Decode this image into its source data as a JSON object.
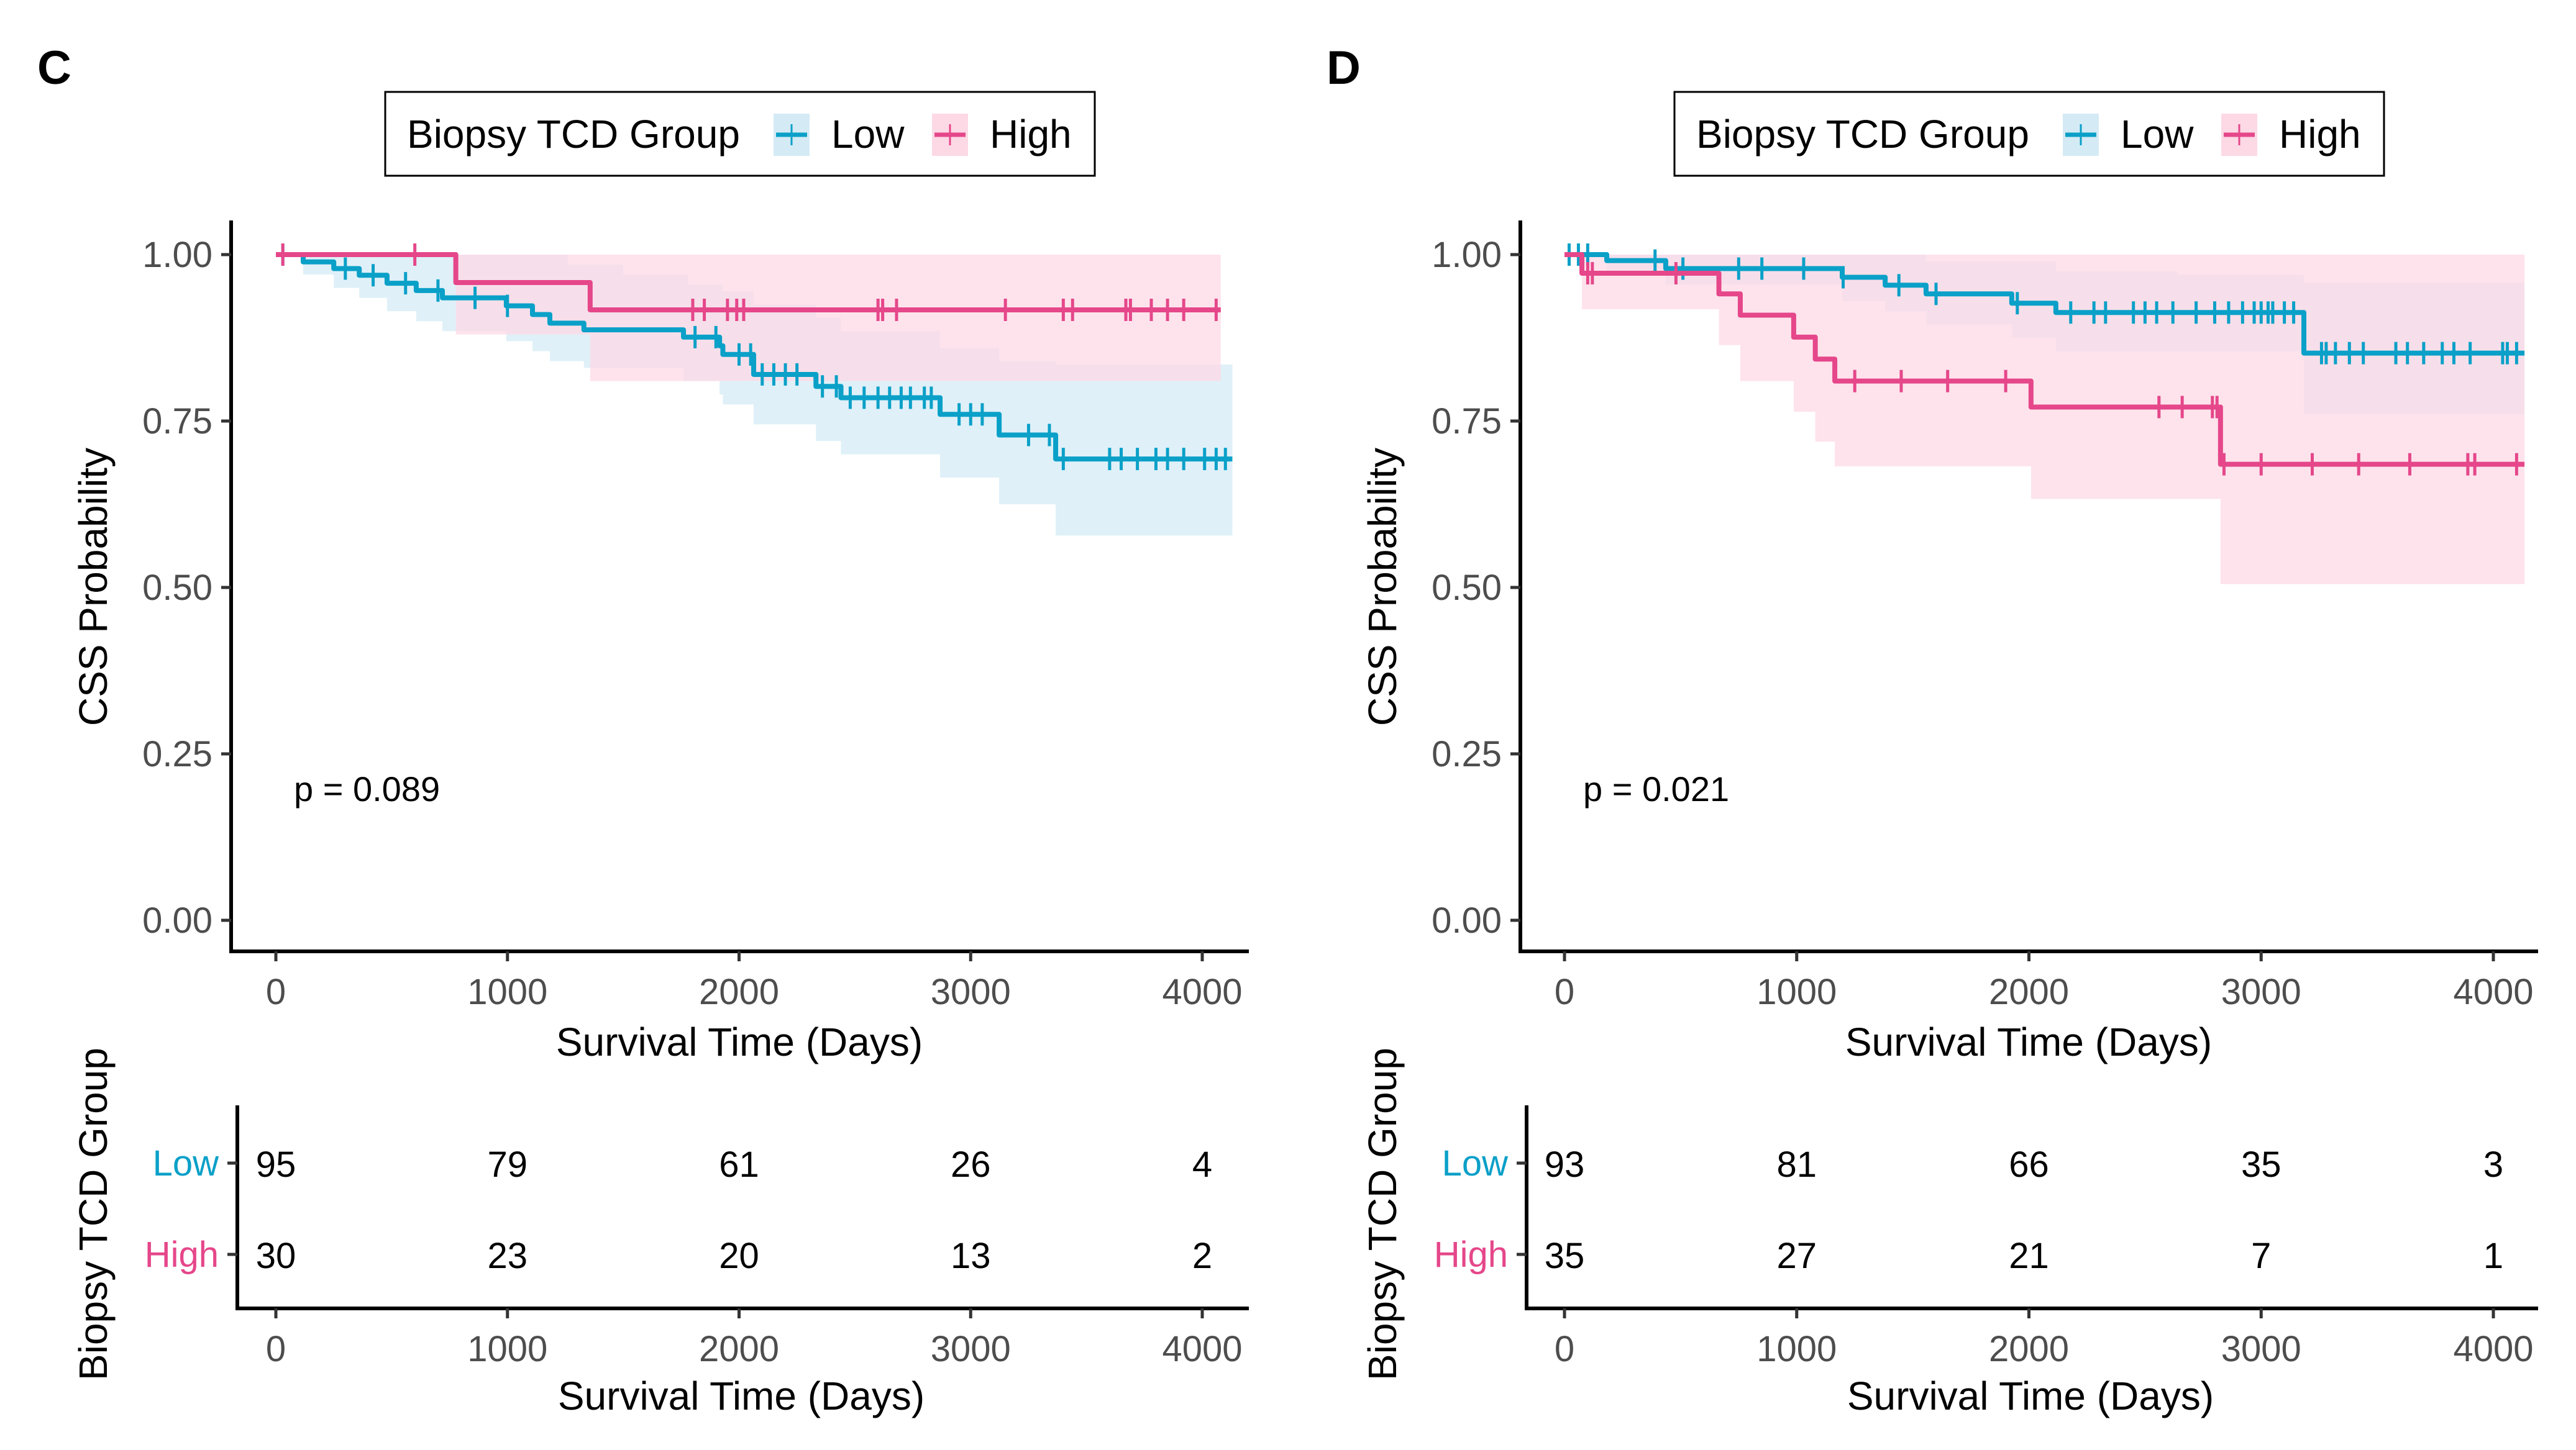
{
  "chart_data": [
    {
      "type": "line",
      "subtype": "kaplan-meier",
      "panel_label": "C",
      "title": "",
      "xlabel": "Survival Time (Days)",
      "ylabel": "CSS Probability",
      "xlim": [
        0,
        4000
      ],
      "ylim": [
        0,
        1
      ],
      "x_ticks": [
        "0",
        "1000",
        "2000",
        "3000",
        "4000"
      ],
      "y_ticks": [
        "0.00",
        "0.25",
        "0.50",
        "0.75",
        "1.00"
      ],
      "grid": false,
      "legend": {
        "title": "Biopsy TCD Group",
        "position": "top",
        "entries": [
          "Low",
          "High"
        ]
      },
      "annotation": "p = 0.089",
      "series": [
        {
          "name": "Low",
          "color": "#0aa0c8",
          "band_color": "#d4ebf5",
          "end_x": 4130,
          "steps": [
            [
              0,
              1.0
            ],
            [
              118,
              0.989
            ],
            [
              250,
              0.979
            ],
            [
              360,
              0.969
            ],
            [
              480,
              0.957
            ],
            [
              606,
              0.946
            ],
            [
              719,
              0.935
            ],
            [
              995,
              0.923
            ],
            [
              1108,
              0.91
            ],
            [
              1183,
              0.897
            ],
            [
              1330,
              0.887
            ],
            [
              1760,
              0.876
            ],
            [
              1916,
              0.863
            ],
            [
              1930,
              0.85
            ],
            [
              2063,
              0.82
            ],
            [
              2332,
              0.802
            ],
            [
              2440,
              0.785
            ],
            [
              2868,
              0.76
            ],
            [
              3123,
              0.729
            ],
            [
              3367,
              0.693
            ]
          ],
          "ci_lower": [
            [
              0,
              1.0
            ],
            [
              118,
              0.97
            ],
            [
              250,
              0.95
            ],
            [
              360,
              0.935
            ],
            [
              480,
              0.915
            ],
            [
              606,
              0.9
            ],
            [
              719,
              0.885
            ],
            [
              995,
              0.87
            ],
            [
              1108,
              0.855
            ],
            [
              1183,
              0.84
            ],
            [
              1330,
              0.83
            ],
            [
              1760,
              0.81
            ],
            [
              1916,
              0.79
            ],
            [
              1930,
              0.775
            ],
            [
              2063,
              0.745
            ],
            [
              2332,
              0.72
            ],
            [
              2440,
              0.7
            ],
            [
              2868,
              0.665
            ],
            [
              3123,
              0.625
            ],
            [
              3367,
              0.578
            ]
          ],
          "ci_upper": [
            [
              0,
              1.0
            ],
            [
              720,
              1.0
            ],
            [
              1260,
              0.985
            ],
            [
              1500,
              0.97
            ],
            [
              1780,
              0.955
            ],
            [
              1930,
              0.945
            ],
            [
              2063,
              0.925
            ],
            [
              2332,
              0.905
            ],
            [
              2440,
              0.885
            ],
            [
              2868,
              0.86
            ],
            [
              3123,
              0.84
            ],
            [
              3367,
              0.835
            ]
          ],
          "censor_times": [
            30,
            300,
            420,
            560,
            700,
            860,
            1000,
            1810,
            1900,
            2000,
            2050,
            2100,
            2150,
            2200,
            2250,
            2360,
            2420,
            2480,
            2540,
            2600,
            2650,
            2700,
            2740,
            2800,
            2830,
            2950,
            3000,
            3050,
            3250,
            3340,
            3400,
            3600,
            3650,
            3720,
            3800,
            3850,
            3920,
            4010,
            4060,
            4100
          ]
        },
        {
          "name": "High",
          "color": "#e5478a",
          "band_color": "#fdd9e5",
          "end_x": 4080,
          "steps": [
            [
              0,
              1.0
            ],
            [
              777,
              0.958
            ],
            [
              1357,
              0.917
            ]
          ],
          "ci_lower": [
            [
              0,
              1.0
            ],
            [
              777,
              0.88
            ],
            [
              1357,
              0.81
            ]
          ],
          "ci_upper": [
            [
              0,
              1.0
            ],
            [
              4080,
              1.0
            ]
          ],
          "ci_lower_extra": [
            [
              0,
              1.0
            ],
            [
              777,
              0.884
            ],
            [
              1357,
              0.812
            ]
          ],
          "censor_times": [
            30,
            600,
            1800,
            1850,
            1950,
            1990,
            2020,
            2600,
            2620,
            2680,
            3150,
            3400,
            3440,
            3670,
            3690,
            3780,
            3850,
            3920,
            4060
          ]
        }
      ]
    },
    {
      "type": "line",
      "subtype": "kaplan-meier",
      "panel_label": "D",
      "title": "",
      "xlabel": "Survival Time (Days)",
      "ylabel": "CSS Probability",
      "xlim": [
        0,
        4000
      ],
      "ylim": [
        0,
        1
      ],
      "x_ticks": [
        "0",
        "1000",
        "2000",
        "3000",
        "4000"
      ],
      "y_ticks": [
        "0.00",
        "0.25",
        "0.50",
        "0.75",
        "1.00"
      ],
      "grid": false,
      "legend": {
        "title": "Biopsy TCD Group",
        "position": "top",
        "entries": [
          "Low",
          "High"
        ]
      },
      "annotation": "p = 0.021",
      "series": [
        {
          "name": "Low",
          "color": "#0aa0c8",
          "band_color": "#d4ebf5",
          "end_x": 4134,
          "steps": [
            [
              0,
              1.0
            ],
            [
              182,
              0.991
            ],
            [
              436,
              0.979
            ],
            [
              1196,
              0.966
            ],
            [
              1381,
              0.954
            ],
            [
              1557,
              0.941
            ],
            [
              1926,
              0.927
            ],
            [
              2116,
              0.913
            ],
            [
              3184,
              0.852
            ]
          ],
          "ci_lower": [
            [
              0,
              1.0
            ],
            [
              182,
              0.975
            ],
            [
              436,
              0.955
            ],
            [
              1196,
              0.93
            ],
            [
              1381,
              0.915
            ],
            [
              1557,
              0.895
            ],
            [
              1926,
              0.875
            ],
            [
              2116,
              0.855
            ],
            [
              3184,
              0.76
            ]
          ],
          "ci_upper": [
            [
              0,
              1.0
            ],
            [
              1050,
              1.0
            ],
            [
              1557,
              0.99
            ],
            [
              2116,
              0.975
            ],
            [
              2640,
              0.97
            ],
            [
              3184,
              0.958
            ]
          ],
          "censor_times": [
            20,
            60,
            100,
            390,
            510,
            750,
            850,
            1030,
            1200,
            1440,
            1600,
            1950,
            2180,
            2280,
            2330,
            2450,
            2500,
            2550,
            2620,
            2720,
            2800,
            2860,
            2920,
            2970,
            3000,
            3030,
            3050,
            3100,
            3140,
            3260,
            3280,
            3320,
            3380,
            3440,
            3580,
            3630,
            3700,
            3780,
            3830,
            3900,
            4040,
            4060,
            4100
          ]
        },
        {
          "name": "High",
          "color": "#e5478a",
          "band_color": "#fdd9e5",
          "end_x": 4134,
          "steps": [
            [
              0,
              1.0
            ],
            [
              75,
              0.972
            ],
            [
              665,
              0.941
            ],
            [
              757,
              0.909
            ],
            [
              987,
              0.876
            ],
            [
              1080,
              0.843
            ],
            [
              1164,
              0.81
            ],
            [
              2009,
              0.771
            ],
            [
              2825,
              0.685
            ]
          ],
          "ci_lower": [
            [
              0,
              1.0
            ],
            [
              75,
              0.918
            ],
            [
              665,
              0.864
            ],
            [
              757,
              0.81
            ],
            [
              987,
              0.764
            ],
            [
              1080,
              0.719
            ],
            [
              1164,
              0.682
            ],
            [
              2009,
              0.633
            ],
            [
              2825,
              0.505
            ]
          ],
          "ci_upper": [
            [
              0,
              1.0
            ],
            [
              4100,
              1.0
            ]
          ],
          "censor_times": [
            100,
            120,
            480,
            1250,
            1450,
            1650,
            1900,
            2560,
            2660,
            2790,
            2810,
            2840,
            3000,
            3220,
            3420,
            3640,
            3890,
            3920,
            4100
          ]
        }
      ]
    }
  ],
  "panels": [
    {
      "label": "C",
      "legend_title": "Biopsy TCD Group",
      "legend_low": "Low",
      "legend_high": "High",
      "ylabel": "CSS Probability",
      "xlabel": "Survival Time (Days)",
      "pvalue": "p = 0.089",
      "risk_table": {
        "ylabel": "Biopsy TCD Group",
        "xlabel": "Survival Time (Days)",
        "groups": [
          "Low",
          "High"
        ],
        "times": [
          0,
          1000,
          2000,
          3000,
          4000
        ],
        "low": [
          "95",
          "79",
          "61",
          "26",
          "4"
        ],
        "high": [
          "30",
          "23",
          "20",
          "13",
          "2"
        ]
      }
    },
    {
      "label": "D",
      "legend_title": "Biopsy TCD Group",
      "legend_low": "Low",
      "legend_high": "High",
      "ylabel": "CSS Probability",
      "xlabel": "Survival Time (Days)",
      "pvalue": "p = 0.021",
      "risk_table": {
        "ylabel": "Biopsy TCD Group",
        "xlabel": "Survival Time (Days)",
        "groups": [
          "Low",
          "High"
        ],
        "times": [
          0,
          1000,
          2000,
          3000,
          4000
        ],
        "low": [
          "93",
          "81",
          "66",
          "35",
          "3"
        ],
        "high": [
          "35",
          "27",
          "21",
          "7",
          "1"
        ]
      }
    }
  ],
  "colors": {
    "low": "#0aa0c8",
    "high": "#e5478a",
    "low_band": "#d4ebf5",
    "high_band": "#fdd9e5",
    "overlap_band": "#dccde0"
  }
}
